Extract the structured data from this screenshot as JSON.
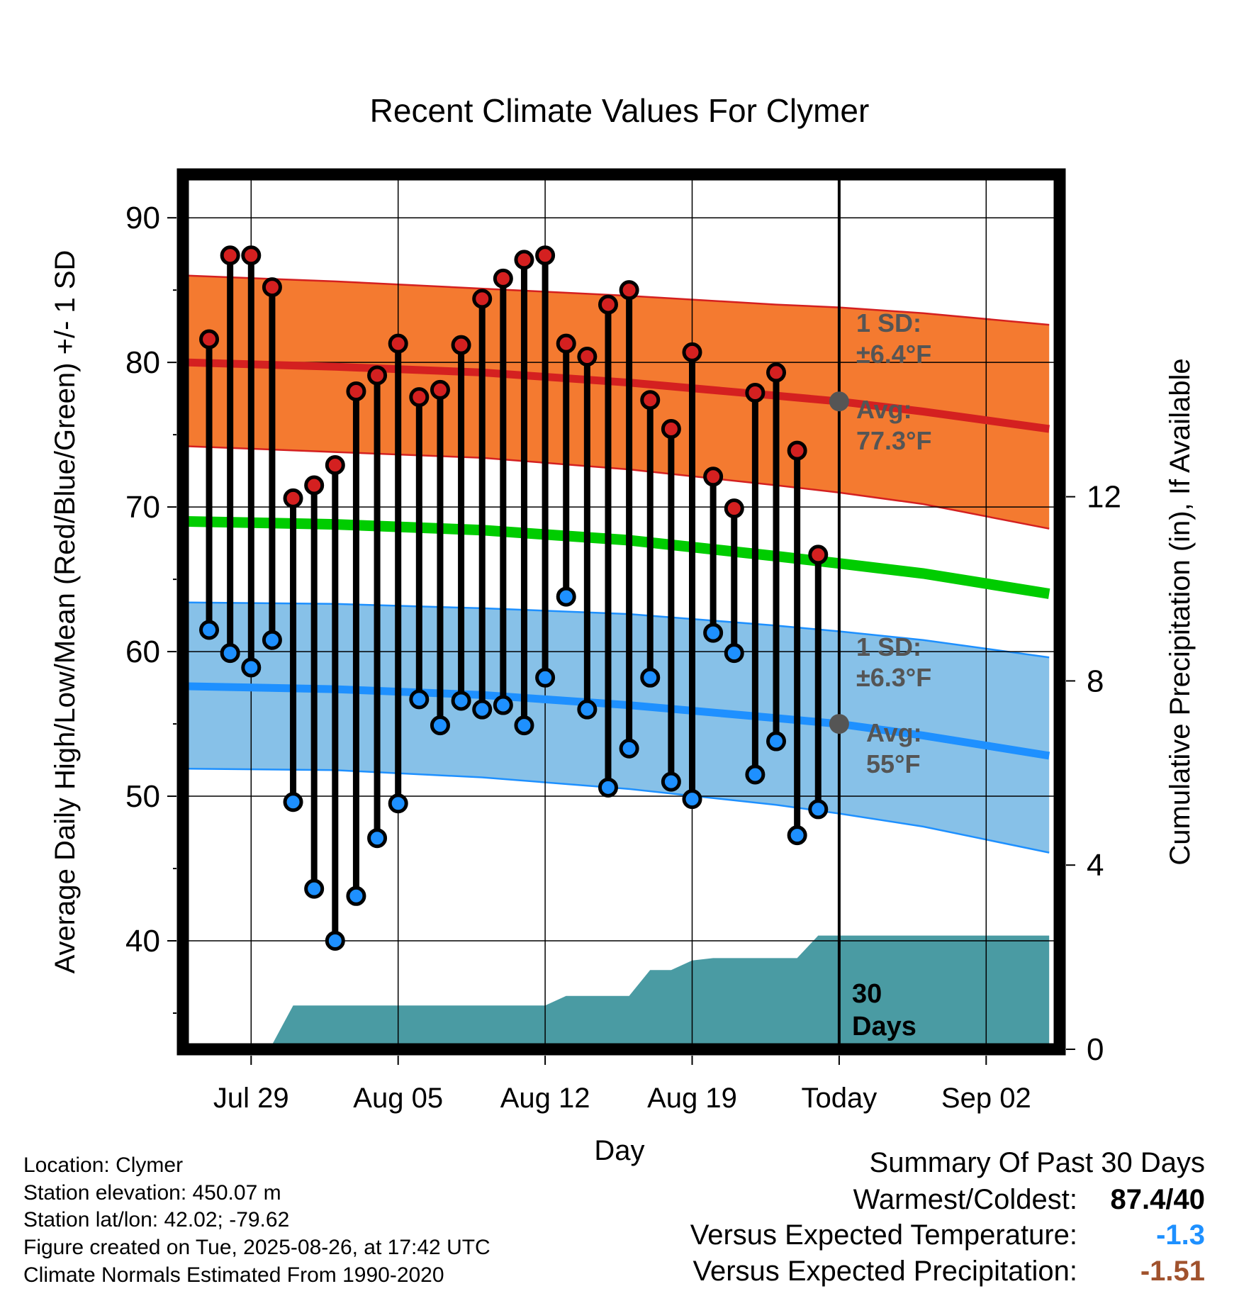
{
  "chart_data": {
    "type": "line",
    "title": "Recent Climate Values For Clymer",
    "xlabel": "Day",
    "ylabel": "Average Daily High/Low/Mean (Red/Blue/Green) +/- 1 SD",
    "y2label": "Cumulative Precipitation (in), If Available",
    "ylim": [
      32.5,
      93
    ],
    "y2lim": [
      0,
      19
    ],
    "yticks": [
      40,
      50,
      60,
      70,
      80,
      90
    ],
    "y2ticks": [
      0,
      4,
      8,
      12
    ],
    "x_tick_labels": [
      "Jul 29",
      "Aug 05",
      "Aug 12",
      "Aug 19",
      "Today",
      "Sep 02"
    ],
    "x_tick_dates": [
      "2025-07-29",
      "2025-08-05",
      "2025-08-12",
      "2025-08-19",
      "2025-08-26",
      "2025-09-02"
    ],
    "xlim": [
      "2025-07-25T18:00",
      "2025-09-05T12:00"
    ],
    "grid": true,
    "colors": {
      "high": "#d42020",
      "low": "#1e90ff",
      "mean": "#00cc00",
      "high_band": "#f47a30",
      "low_band": "#87c1e8",
      "precip": "#4a9ba3",
      "avg_marker": "#555555",
      "annotation": "#555555"
    },
    "dates": [
      "2025-07-27",
      "2025-07-28",
      "2025-07-29",
      "2025-07-30",
      "2025-07-31",
      "2025-08-01",
      "2025-08-02",
      "2025-08-03",
      "2025-08-04",
      "2025-08-05",
      "2025-08-06",
      "2025-08-07",
      "2025-08-08",
      "2025-08-09",
      "2025-08-10",
      "2025-08-11",
      "2025-08-12",
      "2025-08-13",
      "2025-08-14",
      "2025-08-15",
      "2025-08-16",
      "2025-08-17",
      "2025-08-18",
      "2025-08-19",
      "2025-08-20",
      "2025-08-21",
      "2025-08-22",
      "2025-08-23",
      "2025-08-24",
      "2025-08-25"
    ],
    "series": [
      {
        "name": "High",
        "values": [
          81.6,
          87.4,
          87.4,
          85.2,
          70.6,
          71.5,
          72.9,
          78.0,
          79.1,
          81.3,
          77.6,
          78.1,
          81.2,
          84.4,
          85.8,
          87.1,
          87.4,
          81.3,
          80.4,
          84.0,
          85.0,
          77.4,
          75.4,
          80.7,
          72.1,
          69.9,
          77.9,
          79.3,
          73.9,
          66.7
        ]
      },
      {
        "name": "Low",
        "values": [
          61.5,
          59.9,
          58.9,
          60.8,
          49.6,
          43.6,
          40.0,
          43.1,
          47.1,
          49.5,
          56.7,
          54.9,
          56.6,
          56.0,
          56.3,
          54.9,
          58.2,
          63.8,
          56.0,
          50.6,
          53.3,
          58.2,
          51.0,
          49.8,
          61.3,
          59.9,
          51.5,
          53.8,
          47.3,
          49.1
        ]
      }
    ],
    "normals": {
      "dates": [
        "2025-07-26",
        "2025-08-02",
        "2025-08-09",
        "2025-08-16",
        "2025-08-23",
        "2025-08-26",
        "2025-08-30",
        "2025-09-05"
      ],
      "high_avg": [
        80.0,
        79.7,
        79.3,
        78.6,
        77.7,
        77.3,
        76.6,
        75.4
      ],
      "high_sd_upper": [
        86.0,
        85.6,
        85.1,
        84.6,
        84.0,
        83.8,
        83.4,
        82.6
      ],
      "high_sd_lower": [
        74.2,
        73.8,
        73.4,
        72.6,
        71.5,
        71.0,
        70.2,
        68.5
      ],
      "mean": [
        69.0,
        68.8,
        68.4,
        67.7,
        66.6,
        66.1,
        65.4,
        64.0
      ],
      "low_avg": [
        57.6,
        57.4,
        57.0,
        56.3,
        55.4,
        55.0,
        54.2,
        52.8
      ],
      "low_sd_upper": [
        63.4,
        63.3,
        63.0,
        62.6,
        61.8,
        61.4,
        60.8,
        59.6
      ],
      "low_sd_lower": [
        51.9,
        51.8,
        51.3,
        50.5,
        49.4,
        48.8,
        47.9,
        46.1
      ]
    },
    "precipitation": {
      "name": "Cumulative Precipitation",
      "dates": [
        "2025-07-26",
        "2025-07-27",
        "2025-07-28",
        "2025-07-29",
        "2025-07-30",
        "2025-07-31",
        "2025-08-01",
        "2025-08-02",
        "2025-08-03",
        "2025-08-04",
        "2025-08-05",
        "2025-08-06",
        "2025-08-07",
        "2025-08-08",
        "2025-08-09",
        "2025-08-10",
        "2025-08-11",
        "2025-08-12",
        "2025-08-13",
        "2025-08-14",
        "2025-08-15",
        "2025-08-16",
        "2025-08-17",
        "2025-08-18",
        "2025-08-19",
        "2025-08-20",
        "2025-08-21",
        "2025-08-22",
        "2025-08-23",
        "2025-08-24",
        "2025-08-25",
        "2025-08-26",
        "2025-09-05"
      ],
      "values": [
        0.0,
        0.1,
        0.1,
        0.1,
        0.1,
        0.95,
        0.95,
        0.95,
        0.95,
        0.95,
        0.95,
        0.95,
        0.95,
        0.95,
        0.95,
        0.95,
        0.95,
        0.95,
        1.16,
        1.16,
        1.16,
        1.16,
        1.72,
        1.72,
        1.93,
        1.98,
        1.98,
        1.98,
        1.98,
        1.98,
        2.47,
        2.47,
        2.47
      ]
    },
    "annotations": {
      "high_sd_label": "1 SD:",
      "high_sd_value": "±6.4°F",
      "high_avg_label": "Avg:",
      "high_avg_value": "77.3°F",
      "high_avg": 77.3,
      "low_sd_label": "1 SD:",
      "low_sd_value": "±6.3°F",
      "low_avg_label": "Avg:",
      "low_avg_value": "55°F",
      "low_avg": 55,
      "precip_label_1": "30",
      "precip_label_2": "Days"
    }
  },
  "footer": {
    "location": "Location: Clymer",
    "elevation": "Station elevation: 450.07 m",
    "latlon": "Station lat/lon: 42.02; -79.62",
    "created": "Figure created on Tue, 2025-08-26, at 17:42 UTC",
    "normals": "Climate Normals Estimated From 1990-2020"
  },
  "summary": {
    "title": "Summary Of Past 30 Days",
    "warmest_coldest_label": "Warmest/Coldest:",
    "warmest_coldest_value": "87.4/40",
    "temp_label": "Versus Expected Temperature:",
    "temp_value": "-1.3",
    "temp_color": "#1e90ff",
    "precip_label": "Versus Expected Precipitation:",
    "precip_value": "-1.51",
    "precip_color": "#a0522d"
  }
}
